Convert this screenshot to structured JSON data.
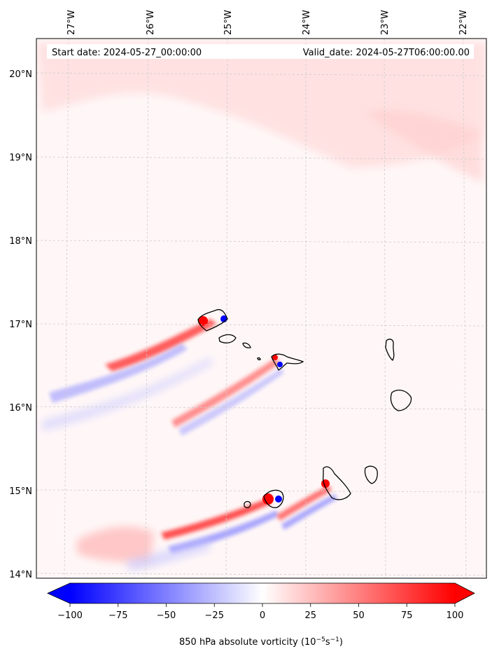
{
  "header": {
    "start_date": "Start date: 2024-05-27_00:00:00",
    "valid_date": "Valid_date: 2024-05-27T06:00:00.00"
  },
  "lon_labels": [
    "27°W",
    "26°W",
    "25°W",
    "24°W",
    "23°W",
    "22°W"
  ],
  "lat_labels": [
    "20°N",
    "19°N",
    "18°N",
    "17°N",
    "16°N",
    "15°N",
    "14°N"
  ],
  "colorbar": {
    "ticks": [
      "−100",
      "−75",
      "−50",
      "−25",
      "0",
      "25",
      "50",
      "75",
      "100"
    ],
    "label_main": "850 hPa absolute vorticity (10",
    "label_exp1": "−5",
    "label_mid": "s",
    "label_exp2": "−1",
    "label_end": ")",
    "min": -100,
    "max": 100,
    "colormap": "bwr",
    "extend": "both"
  },
  "colors": {
    "negative": "#0000ff",
    "neutral": "#ffffff",
    "positive": "#ff0000",
    "coastline": "#000000",
    "gridline": "#cccccc"
  }
}
